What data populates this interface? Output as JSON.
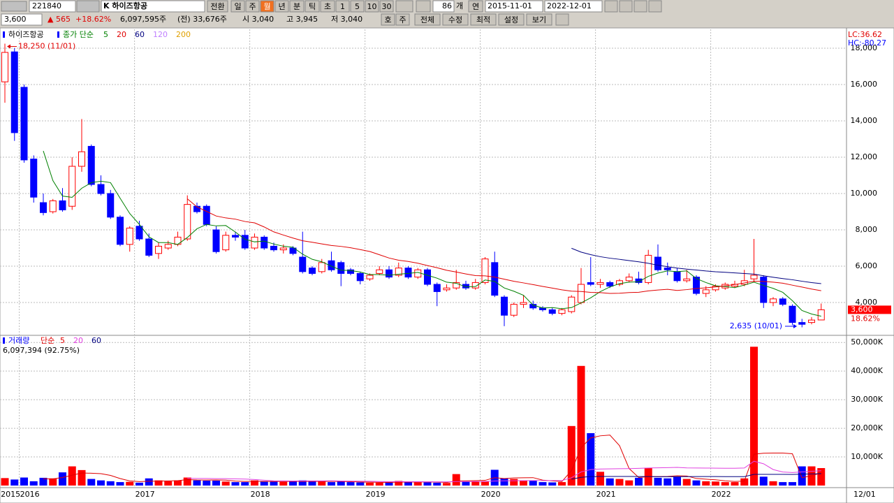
{
  "toolbar": {
    "code": "221840",
    "name": "K 하이즈항공",
    "buttons": [
      "전환",
      "일",
      "주",
      "월",
      "년",
      "분",
      "틱",
      "초",
      "1",
      "5",
      "10",
      "30"
    ],
    "count": "86",
    "count_unit": "개",
    "range_label": "연",
    "start": "2015-11-01",
    "end": "2022-12-01"
  },
  "quote": {
    "price": "3,600",
    "change": "▲ 565",
    "rate": "+18.62%",
    "volume": "6,097,595주",
    "prev_volume": "(전) 33,676주",
    "open": "시 3,040",
    "high": "고 3,945",
    "low": "저 3,040",
    "buttons": [
      "호",
      "주",
      "전체",
      "수정",
      "최적",
      "설정",
      "보기"
    ]
  },
  "chart_data": {
    "type": "candlestick",
    "name": "하이즈항공",
    "ma_label": "종가 단순",
    "ma_periods": [
      5,
      20,
      60,
      120,
      200
    ],
    "ma_colors": [
      "#008000",
      "#e00000",
      "#000080",
      "#c080ff",
      "#e0a000"
    ],
    "lc_label": "LC:36.62",
    "hc_label": "HC:-80.27",
    "high_note": "18,250 (11/01)",
    "low_note": "2,635 (10/01)",
    "last_price_label": "3,600",
    "last_rate_label": "18.62%",
    "up_color": "#ff0000",
    "down_color": "#0000ff",
    "categories": [
      "2015",
      null,
      "2016",
      null,
      null,
      null,
      null,
      null,
      null,
      null,
      null,
      null,
      null,
      null,
      "2017",
      null,
      null,
      null,
      null,
      null,
      null,
      null,
      null,
      null,
      null,
      null,
      "2018",
      null,
      null,
      null,
      null,
      null,
      null,
      null,
      null,
      null,
      null,
      null,
      "2019",
      null,
      null,
      null,
      null,
      null,
      null,
      null,
      null,
      null,
      null,
      null,
      "2020",
      null,
      null,
      null,
      null,
      null,
      null,
      null,
      null,
      null,
      null,
      null,
      "2021",
      null,
      null,
      null,
      null,
      null,
      null,
      null,
      null,
      null,
      null,
      null,
      "2022",
      null,
      null,
      null,
      null,
      null,
      null,
      null,
      null,
      null,
      null,
      null
    ],
    "x_end_label": "12/01",
    "ohlc": [
      [
        16150,
        18250,
        15000,
        17770
      ],
      [
        17800,
        18000,
        12900,
        13350
      ],
      [
        15850,
        16000,
        11700,
        11850
      ],
      [
        11900,
        12100,
        9500,
        9800
      ],
      [
        9500,
        10000,
        8800,
        8950
      ],
      [
        9000,
        9700,
        8900,
        9600
      ],
      [
        9600,
        10300,
        9000,
        9100
      ],
      [
        9300,
        12000,
        9100,
        11500
      ],
      [
        11500,
        14100,
        11200,
        12300
      ],
      [
        12600,
        12700,
        10400,
        10500
      ],
      [
        10500,
        11000,
        9900,
        10000
      ],
      [
        10000,
        10200,
        8600,
        8700
      ],
      [
        8700,
        8800,
        7100,
        7200
      ],
      [
        7200,
        8200,
        6800,
        8100
      ],
      [
        8200,
        8500,
        7400,
        7500
      ],
      [
        7500,
        7800,
        6500,
        6600
      ],
      [
        6700,
        7300,
        6400,
        7100
      ],
      [
        7000,
        7400,
        6900,
        7200
      ],
      [
        7200,
        7900,
        7100,
        7600
      ],
      [
        7500,
        9900,
        7400,
        9400
      ],
      [
        9300,
        9500,
        8900,
        9000
      ],
      [
        9300,
        9400,
        8200,
        8300
      ],
      [
        8000,
        8200,
        6700,
        6800
      ],
      [
        6900,
        7900,
        6800,
        7700
      ],
      [
        7700,
        7900,
        7400,
        7600
      ],
      [
        7700,
        8000,
        6900,
        7000
      ],
      [
        7000,
        7800,
        6900,
        7600
      ],
      [
        7600,
        7700,
        6900,
        7000
      ],
      [
        7100,
        7300,
        6800,
        6900
      ],
      [
        6900,
        7200,
        6700,
        7000
      ],
      [
        7000,
        7100,
        6600,
        6700
      ],
      [
        6500,
        7900,
        5600,
        5700
      ],
      [
        5900,
        6000,
        5500,
        5600
      ],
      [
        5700,
        6400,
        5600,
        6200
      ],
      [
        6300,
        6800,
        5700,
        5800
      ],
      [
        6200,
        6300,
        4900,
        5600
      ],
      [
        5800,
        5900,
        5500,
        5600
      ],
      [
        5600,
        5700,
        5000,
        5200
      ],
      [
        5300,
        5600,
        5200,
        5500
      ],
      [
        5600,
        6000,
        5500,
        5800
      ],
      [
        5800,
        6000,
        5300,
        5400
      ],
      [
        5500,
        6200,
        5400,
        5900
      ],
      [
        5900,
        6000,
        5300,
        5400
      ],
      [
        5400,
        5900,
        5300,
        5800
      ],
      [
        5800,
        5900,
        4900,
        5000
      ],
      [
        5000,
        5100,
        3800,
        4600
      ],
      [
        4700,
        5000,
        4600,
        4800
      ],
      [
        4800,
        5800,
        4700,
        5100
      ],
      [
        5000,
        5200,
        4700,
        4800
      ],
      [
        4800,
        5300,
        4700,
        5100
      ],
      [
        5100,
        6500,
        5000,
        6400
      ],
      [
        6200,
        6800,
        4300,
        4400
      ],
      [
        4300,
        4400,
        2700,
        3300
      ],
      [
        3300,
        4000,
        3200,
        3900
      ],
      [
        3900,
        4400,
        3700,
        4000
      ],
      [
        3900,
        4100,
        3600,
        3700
      ],
      [
        3700,
        3800,
        3500,
        3600
      ],
      [
        3600,
        3700,
        3300,
        3400
      ],
      [
        3400,
        3700,
        3300,
        3600
      ],
      [
        3500,
        4400,
        3400,
        4300
      ],
      [
        4000,
        5900,
        3900,
        5000
      ],
      [
        5100,
        6500,
        4900,
        5000
      ],
      [
        5000,
        5300,
        4800,
        5100
      ],
      [
        5100,
        5200,
        4800,
        4900
      ],
      [
        5000,
        5300,
        4900,
        5200
      ],
      [
        5200,
        5600,
        5100,
        5400
      ],
      [
        5300,
        5700,
        5000,
        5100
      ],
      [
        5100,
        6900,
        5000,
        6600
      ],
      [
        6500,
        7200,
        5700,
        5800
      ],
      [
        5900,
        6200,
        5500,
        5800
      ],
      [
        5700,
        5900,
        5100,
        5200
      ],
      [
        5200,
        5800,
        5100,
        5300
      ],
      [
        5400,
        5500,
        4400,
        4500
      ],
      [
        4500,
        4900,
        4300,
        4700
      ],
      [
        4700,
        5000,
        4600,
        4900
      ],
      [
        4800,
        5100,
        4700,
        5000
      ],
      [
        4900,
        5200,
        4800,
        5000
      ],
      [
        5000,
        5800,
        4900,
        5200
      ],
      [
        5300,
        7500,
        5100,
        5500
      ],
      [
        5400,
        5500,
        3700,
        4000
      ],
      [
        4000,
        4300,
        3800,
        4200
      ],
      [
        4200,
        4300,
        3800,
        3900
      ],
      [
        3800,
        3900,
        2750,
        2900
      ],
      [
        2900,
        3100,
        2635,
        2800
      ],
      [
        2900,
        3200,
        2800,
        3035
      ],
      [
        3040,
        3945,
        3040,
        3600
      ]
    ],
    "ylim": [
      2270,
      19040
    ],
    "yticks": [
      {
        "value": 4000,
        "label": "4,000"
      },
      {
        "value": 6000,
        "label": "6,000"
      },
      {
        "value": 8000,
        "label": "8,000"
      },
      {
        "value": 10000,
        "label": "10,000"
      },
      {
        "value": 12000,
        "label": "12,000"
      },
      {
        "value": 14000,
        "label": "14,000"
      },
      {
        "value": 16000,
        "label": "16,000"
      },
      {
        "value": 18000,
        "label": "18,000"
      }
    ],
    "volume_label": "거래량",
    "volume_ma_label": "단순",
    "volume_ma_periods": [
      5,
      20,
      60
    ],
    "volume_ma_colors": [
      "#e00000",
      "#e040e0",
      "#000080"
    ],
    "volume_note": "6,097,394 (92.75%)",
    "volume": [
      2600,
      2100,
      2800,
      1500,
      2700,
      2500,
      4600,
      6700,
      5400,
      2300,
      1800,
      1500,
      1200,
      1300,
      1000,
      2500,
      1800,
      1500,
      1800,
      2800,
      1800,
      1700,
      1700,
      1400,
      1200,
      1200,
      1800,
      1500,
      1400,
      1300,
      1400,
      1800,
      1500,
      1400,
      1200,
      1400,
      1200,
      1100,
      1000,
      1000,
      1200,
      1600,
      1300,
      1100,
      1100,
      1000,
      900,
      4000,
      1300,
      1400,
      1500,
      5500,
      2500,
      2300,
      1800,
      1700,
      1200,
      1100,
      1200,
      20800,
      41800,
      18300,
      4800,
      2500,
      2300,
      1800,
      2700,
      6200,
      2700,
      2500,
      3000,
      2300,
      1800,
      1500,
      1400,
      1200,
      1200,
      2500,
      48500,
      3100,
      1500,
      1200,
      1200,
      6700,
      6700,
      6097
    ],
    "vlim": [
      0,
      52000
    ],
    "vticks": [
      {
        "value": 10000,
        "label": "10,000K"
      },
      {
        "value": 20000,
        "label": "20,000K"
      },
      {
        "value": 30000,
        "label": "30,000K"
      },
      {
        "value": 40000,
        "label": "40,000K"
      },
      {
        "value": 50000,
        "label": "50,000K"
      }
    ],
    "grid": true
  }
}
